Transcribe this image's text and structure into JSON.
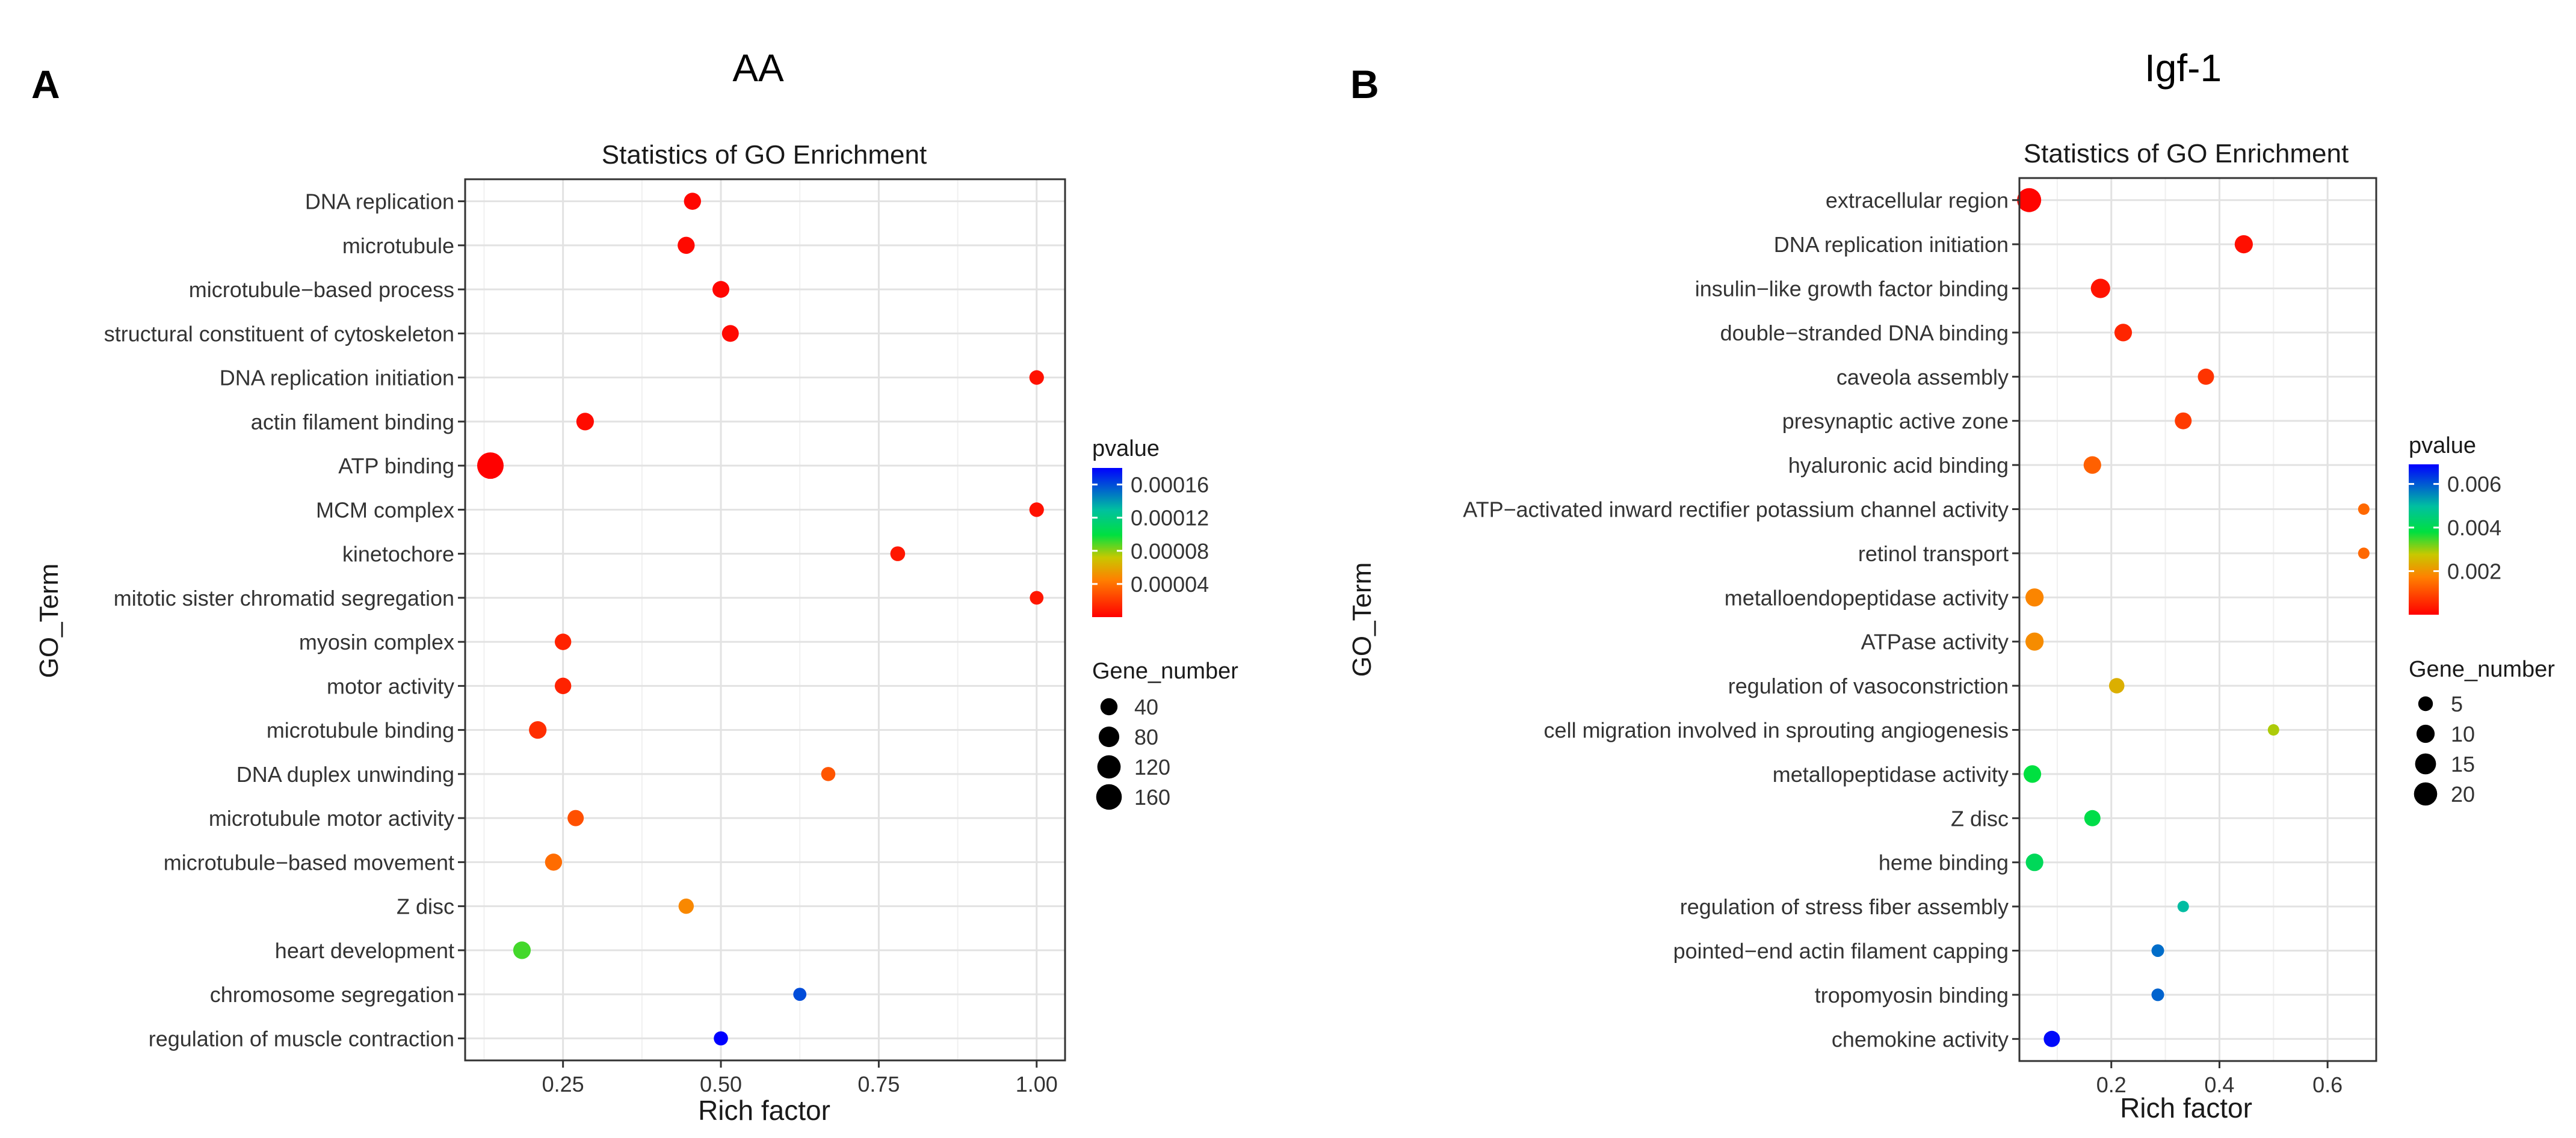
{
  "panels": [
    {
      "letter": "A",
      "title": "AA",
      "chart_data": {
        "type": "scatter",
        "title": "Statistics of GO Enrichment",
        "xlabel": "Rich factor",
        "ylabel": "GO_Term",
        "xlim": [
          0.095,
          1.045
        ],
        "xticks": [
          0.25,
          0.5,
          0.75,
          1.0
        ],
        "xtick_labels": [
          "0.25",
          "0.50",
          "0.75",
          "1.00"
        ],
        "grid": true,
        "categories": [
          "DNA replication",
          "microtubule",
          "microtubule−based process",
          "structural constituent of cytoskeleton",
          "DNA replication initiation",
          "actin filament binding",
          "ATP binding",
          "MCM complex",
          "kinetochore",
          "mitotic sister chromatid segregation",
          "myosin complex",
          "motor activity",
          "microtubule binding",
          "DNA duplex unwinding",
          "microtubule motor activity",
          "microtubule−based movement",
          "Z disc",
          "heart development",
          "chromosome segregation",
          "regulation of muscle contraction"
        ],
        "rich_factor": [
          0.455,
          0.445,
          0.5,
          0.515,
          1.0,
          0.285,
          0.135,
          1.0,
          0.78,
          1.0,
          0.25,
          0.25,
          0.21,
          0.67,
          0.27,
          0.235,
          0.445,
          0.185,
          0.625,
          0.5
        ],
        "gene_number": [
          40,
          40,
          38,
          38,
          20,
          45,
          175,
          20,
          22,
          15,
          35,
          35,
          45,
          18,
          33,
          40,
          25,
          45,
          12,
          18
        ],
        "pvalue": [
          2e-06,
          3e-06,
          2e-06,
          3e-06,
          6e-06,
          4e-06,
          5e-07,
          6e-06,
          8e-06,
          8e-06,
          1.2e-05,
          1.2e-05,
          1.6e-05,
          3e-05,
          2.8e-05,
          3.8e-05,
          4.8e-05,
          9e-05,
          0.00016,
          0.00018
        ],
        "color_legend": {
          "title": "pvalue",
          "min": 0,
          "max": 0.00018,
          "ticks": [
            4e-05,
            8e-05,
            0.00012,
            0.00016
          ],
          "tick_labels": [
            "0.00004",
            "0.00008",
            "0.00012",
            "0.00016"
          ]
        },
        "size_legend": {
          "title": "Gene_number",
          "values": [
            40,
            80,
            120,
            160
          ],
          "labels": [
            "40",
            "80",
            "120",
            "160"
          ]
        }
      }
    },
    {
      "letter": "B",
      "title": "Igf-1",
      "chart_data": {
        "type": "scatter",
        "title": "Statistics of GO Enrichment",
        "xlabel": "Rich factor",
        "ylabel": "GO_Term",
        "xlim": [
          0.03,
          0.69
        ],
        "xticks": [
          0.2,
          0.4,
          0.6
        ],
        "xtick_labels": [
          "0.2",
          "0.4",
          "0.6"
        ],
        "grid": true,
        "categories": [
          "extracellular region",
          "DNA replication initiation",
          "insulin−like growth factor binding",
          "double−stranded DNA binding",
          "caveola assembly",
          "presynaptic active zone",
          "hyaluronic acid binding",
          "ATP−activated inward rectifier potassium channel activity",
          "retinol transport",
          "metalloendopeptidase activity",
          "ATPase activity",
          "regulation of vasoconstriction",
          "cell migration involved in sprouting angiogenesis",
          "metallopeptidase activity",
          "Z disc",
          "heme binding",
          "regulation of stress fiber assembly",
          "pointed−end actin filament capping",
          "tropomyosin binding",
          "chemokine activity"
        ],
        "rich_factor": [
          0.048,
          0.445,
          0.18,
          0.222,
          0.375,
          0.333,
          0.165,
          0.667,
          0.667,
          0.058,
          0.058,
          0.21,
          0.5,
          0.054,
          0.165,
          0.058,
          0.333,
          0.286,
          0.286,
          0.09
        ],
        "gene_number": [
          22,
          10,
          12,
          9,
          7,
          8,
          9,
          2,
          2,
          10,
          10,
          6,
          2,
          9,
          7,
          9,
          2,
          3,
          3,
          7
        ],
        "pvalue": [
          5e-05,
          0.0002,
          0.00025,
          0.0005,
          0.0007,
          0.0008,
          0.0013,
          0.0014,
          0.0014,
          0.0018,
          0.0019,
          0.0024,
          0.0029,
          0.0038,
          0.0039,
          0.0041,
          0.005,
          0.0058,
          0.0059,
          0.0068
        ],
        "color_legend": {
          "title": "pvalue",
          "min": 0,
          "max": 0.0069,
          "ticks": [
            0.002,
            0.004,
            0.006
          ],
          "tick_labels": [
            "0.002",
            "0.004",
            "0.006"
          ]
        },
        "size_legend": {
          "title": "Gene_number",
          "values": [
            5,
            10,
            15,
            20
          ],
          "labels": [
            "5",
            "10",
            "15",
            "20"
          ]
        }
      }
    }
  ]
}
